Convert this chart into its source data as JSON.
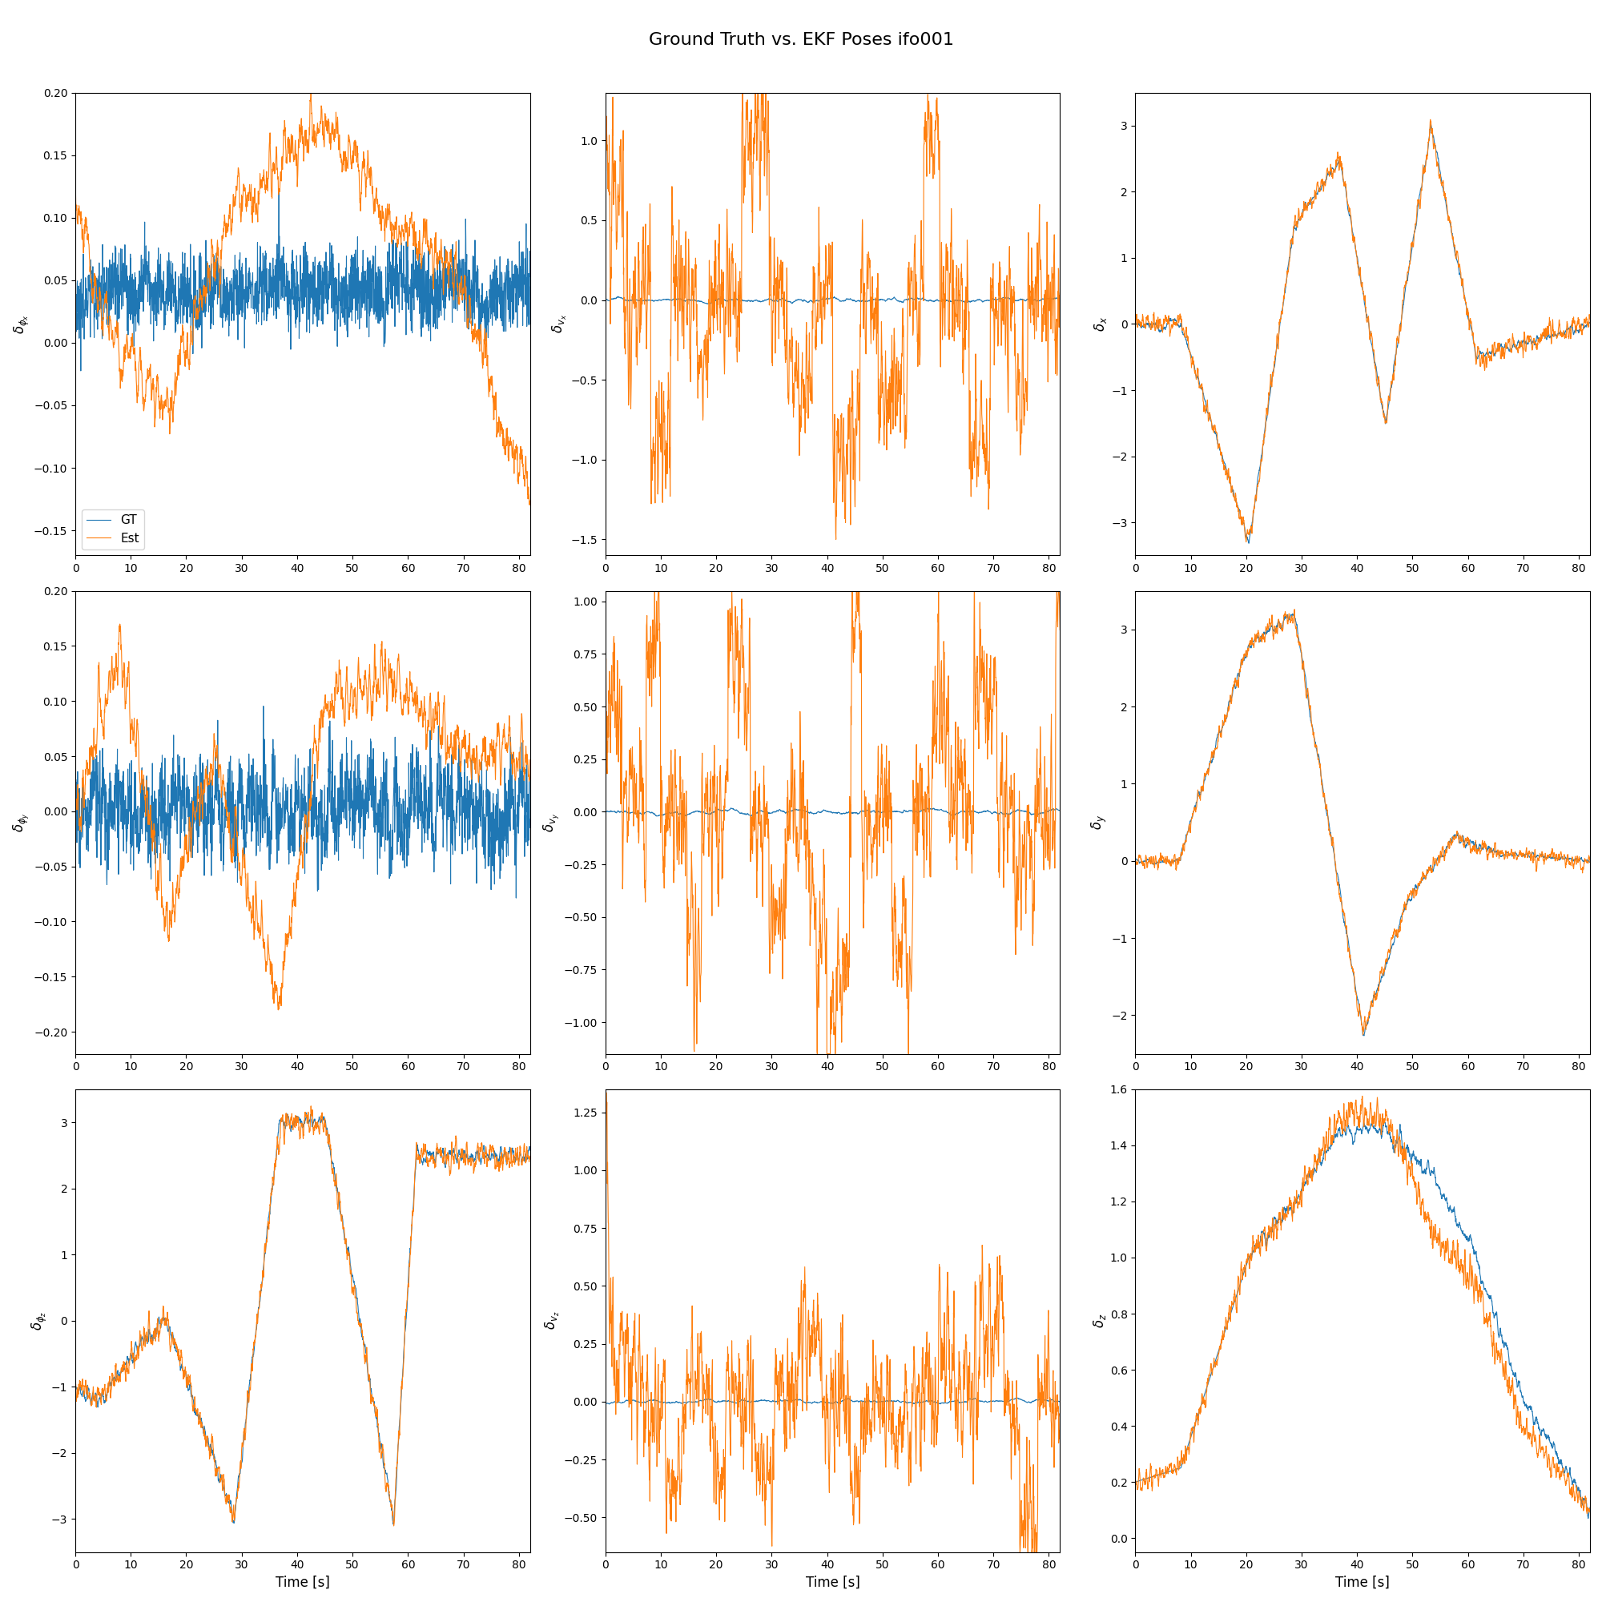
{
  "title": "Ground Truth vs. EKF Poses ifo001",
  "title_fontsize": 16,
  "xlabel": "Time [s]",
  "xlim": [
    0,
    82
  ],
  "blue_color": "#1f77b4",
  "orange_color": "#ff7f0e",
  "legend_labels": [
    "GT",
    "Est"
  ],
  "ylabels": [
    [
      "δ_{φ_x}",
      "δ_{v_x}",
      "δ_x"
    ],
    [
      "δ_{φ_y}",
      "δ_{v_y}",
      "δ_y"
    ],
    [
      "δ_{φ_z}",
      "δ_{v_z}",
      "δ_z"
    ]
  ],
  "row_labels": [
    [
      "δφ_x",
      "δv_x",
      "δx"
    ],
    [
      "δφ_y",
      "δv_y",
      "δy"
    ],
    [
      "δφ_z",
      "δv_z",
      "δz"
    ]
  ],
  "ylims": [
    [
      [
        -0.17,
        0.2
      ],
      [
        -1.6,
        1.3
      ],
      [
        -3.5,
        3.5
      ]
    ],
    [
      [
        -0.22,
        0.2
      ],
      [
        -1.15,
        1.05
      ],
      [
        -2.5,
        3.5
      ]
    ],
    [
      [
        -3.5,
        3.5
      ],
      [
        -0.65,
        1.35
      ],
      [
        -0.05,
        1.6
      ]
    ]
  ],
  "seed": 42
}
